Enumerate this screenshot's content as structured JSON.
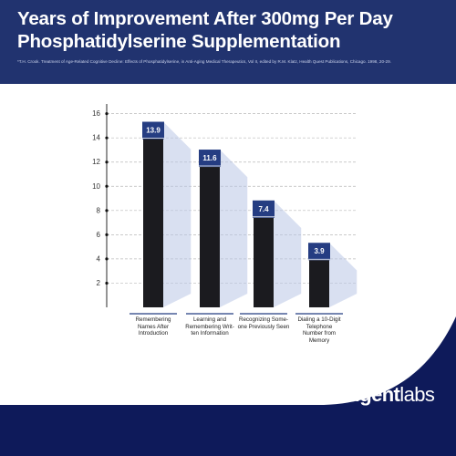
{
  "header": {
    "title": "Years of Improvement After 300mg Per Day Phosphatidylserine Supplementation",
    "citation": "*T.H. Crook. Treatment of Age-Related Cognitive Decline: Effects of Phosphatidylserine, in Anti-Aging Medical Therapeutics, Vol II, edited by R.M. Klatz, Health Quest Publications, Chicago. 1998, 20-29."
  },
  "brand": {
    "logo_bold": "intelligent",
    "logo_light": "labs"
  },
  "colors": {
    "header_bg": "#21336f",
    "background": "#0e1a5a",
    "bar": "#1b1b1f",
    "label_box": "#253d82",
    "shadow": "#b9c6e6"
  },
  "chart_data": {
    "type": "bar",
    "categories": [
      "Remembering Names After Introduction",
      "Learning and Remembering Written Information",
      "Recognizing Someone Previously Seen",
      "Dialing a 10-Digit Telephone Number from Memory"
    ],
    "category_lines": [
      [
        "Remembering",
        "Names After",
        "Introduction"
      ],
      [
        "Learning and",
        "Remembering Writ-",
        "ten Information"
      ],
      [
        "Recognizing Some-",
        "one Previously Seen"
      ],
      [
        "Dialing a 10-Digit",
        "Telephone",
        "Number from",
        "Memory"
      ]
    ],
    "values": [
      13.9,
      11.6,
      7.4,
      3.9
    ],
    "value_labels": [
      "13.9",
      "11.6",
      "7.4",
      "3.9"
    ],
    "yticks": [
      2,
      4,
      6,
      8,
      10,
      12,
      14,
      16
    ],
    "ytick_labels": [
      "2",
      "4",
      "6",
      "8",
      "10",
      "12",
      "14",
      "16"
    ],
    "ylim": [
      0,
      16.5
    ],
    "grid": true,
    "title": "",
    "xlabel": "",
    "ylabel": ""
  }
}
